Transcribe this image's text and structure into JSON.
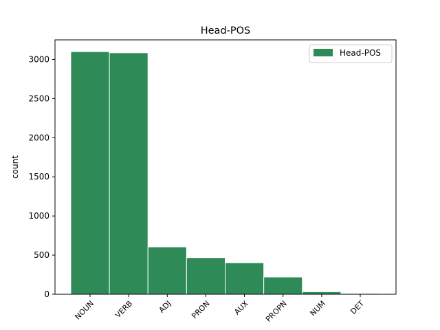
{
  "chart_data": {
    "type": "bar",
    "title": "Head-POS",
    "xlabel": "",
    "ylabel": "count",
    "categories": [
      "NOUN",
      "VERB",
      "ADJ",
      "PRON",
      "AUX",
      "PROPN",
      "NUM",
      "DET"
    ],
    "series": [
      {
        "name": "Head-POS",
        "values": [
          3100,
          3085,
          605,
          468,
          402,
          220,
          32,
          10
        ]
      }
    ],
    "ylim": [
      0,
      3250
    ],
    "yticks": [
      0,
      500,
      1000,
      1500,
      2000,
      2500,
      3000
    ],
    "grid": false,
    "legend": "upper right",
    "bar_color": "#2e8b57",
    "edge_color": "#ffffff"
  }
}
